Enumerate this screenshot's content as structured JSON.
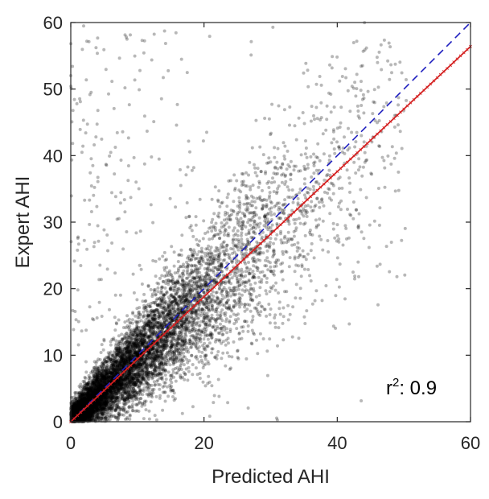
{
  "chart_data": {
    "type": "scatter",
    "xlabel": "Predicted AHI",
    "ylabel": "Expert AHI",
    "xlim": [
      0,
      60
    ],
    "ylim": [
      0,
      60
    ],
    "xticks": [
      "0",
      "20",
      "40",
      "60"
    ],
    "yticks": [
      "0",
      "10",
      "20",
      "30",
      "40",
      "50",
      "60"
    ],
    "grid": false,
    "annotation": {
      "base": "r",
      "sup": "2",
      "rest": ": 0.9"
    },
    "points_description_count": 9000,
    "series": [
      {
        "kind": "points",
        "color": "#000000",
        "opacity": 0.28,
        "sample": [
          [
            1,
            1
          ],
          [
            2,
            3
          ],
          [
            3,
            2
          ],
          [
            5,
            6
          ],
          [
            8,
            9
          ],
          [
            10,
            12
          ],
          [
            12,
            10
          ],
          [
            15,
            17
          ],
          [
            18,
            16
          ],
          [
            20,
            22
          ],
          [
            22,
            20
          ],
          [
            25,
            27
          ],
          [
            28,
            25
          ],
          [
            30,
            33
          ],
          [
            32,
            29
          ],
          [
            35,
            38
          ],
          [
            38,
            34
          ],
          [
            40,
            43
          ],
          [
            42,
            39
          ],
          [
            45,
            48
          ],
          [
            48,
            44
          ],
          [
            50,
            54
          ],
          [
            52,
            49
          ],
          [
            55,
            58
          ],
          [
            58,
            52
          ],
          [
            3,
            8
          ],
          [
            6,
            14
          ],
          [
            10,
            28
          ],
          [
            15,
            40
          ],
          [
            20,
            55
          ],
          [
            30,
            10
          ],
          [
            40,
            20
          ],
          [
            50,
            30
          ],
          [
            45,
            5
          ],
          [
            55,
            18
          ]
        ]
      },
      {
        "kind": "identity-line",
        "color": "#1f1fbf",
        "style": "dashed",
        "x": [
          0,
          60
        ],
        "y": [
          0,
          60
        ]
      },
      {
        "kind": "fit-line",
        "color": "#d42020",
        "style": "solid-marked",
        "x": [
          0,
          60
        ],
        "y": [
          0,
          56.4
        ]
      }
    ]
  }
}
